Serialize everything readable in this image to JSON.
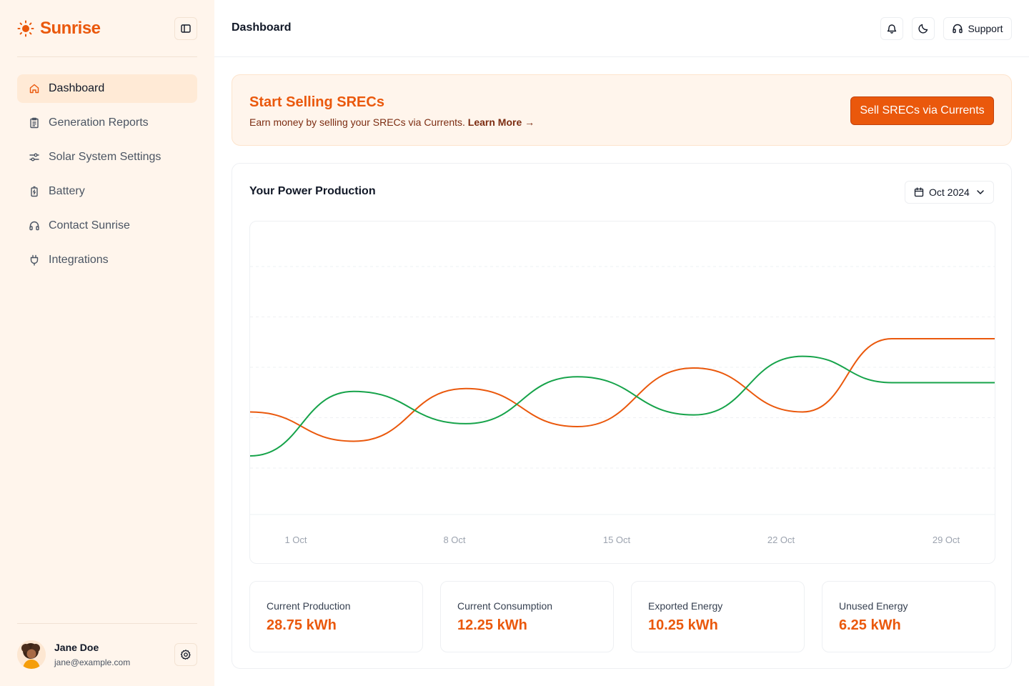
{
  "app": {
    "brand": "Sunrise",
    "brand_color": "#ea580c"
  },
  "sidebar": {
    "items": [
      {
        "label": "Dashboard",
        "icon": "home-icon",
        "active": true
      },
      {
        "label": "Generation Reports",
        "icon": "clipboard-icon",
        "active": false
      },
      {
        "label": "Solar System Settings",
        "icon": "sliders-icon",
        "active": false
      },
      {
        "label": "Battery",
        "icon": "battery-icon",
        "active": false
      },
      {
        "label": "Contact Sunrise",
        "icon": "headset-icon",
        "active": false
      },
      {
        "label": "Integrations",
        "icon": "plug-icon",
        "active": false
      }
    ],
    "user": {
      "name": "Jane Doe",
      "email": "jane@example.com"
    }
  },
  "header": {
    "title": "Dashboard",
    "support_label": "Support"
  },
  "banner": {
    "title": "Start Selling SRECs",
    "description": "Earn money by selling your SRECs via Currents.",
    "link_label": "Learn More →",
    "cta_label": "Sell SRECs via Currents"
  },
  "production": {
    "title": "Your Power Production",
    "month": "Oct 2024"
  },
  "chart_data": {
    "type": "line",
    "title": "",
    "xlabel": "",
    "ylabel": "",
    "x_tick_labels": [
      "1 Oct",
      "8 Oct",
      "15 Oct",
      "22 Oct",
      "29 Oct"
    ],
    "x": [
      "1 Oct",
      "4 Oct",
      "8 Oct",
      "12 Oct",
      "16 Oct",
      "20 Oct",
      "24 Oct",
      "27 Oct",
      "31 Oct"
    ],
    "grid": "horizontal dashed",
    "series": [
      {
        "color": "#ea580c",
        "values": [
          35,
          25,
          43,
          30,
          50,
          35,
          60,
          60,
          60
        ]
      },
      {
        "color": "#16a34a",
        "values": [
          20,
          42,
          31,
          47,
          34,
          54,
          45,
          45,
          45
        ]
      }
    ]
  },
  "stats": [
    {
      "label": "Current Production",
      "value": "28.75 kWh"
    },
    {
      "label": "Current Consumption",
      "value": "12.25 kWh"
    },
    {
      "label": "Exported Energy",
      "value": "10.25 kWh"
    },
    {
      "label": "Unused Energy",
      "value": "6.25 kWh"
    }
  ]
}
